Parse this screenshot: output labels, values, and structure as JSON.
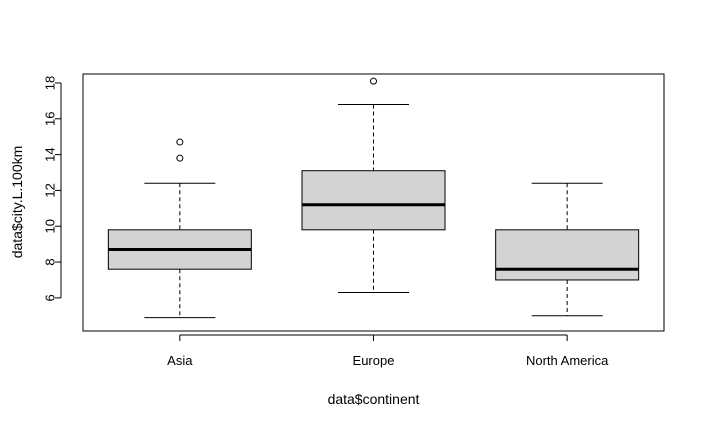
{
  "chart_data": {
    "type": "boxplot",
    "title": "",
    "xlabel": "data$continent",
    "ylabel": "data$city.L.100km",
    "ylim": [
      4.15,
      18.5
    ],
    "yticks": [
      6,
      8,
      10,
      12,
      14,
      16,
      18
    ],
    "grid": false,
    "legend": "none",
    "box_fill": "#d3d3d3",
    "categories": [
      "Asia",
      "Europe",
      "North America"
    ],
    "boxes": [
      {
        "category": "Asia",
        "whisker_low": 4.9,
        "q1": 7.6,
        "median": 8.7,
        "q3": 9.8,
        "whisker_high": 12.4,
        "outliers": [
          13.8,
          14.7
        ]
      },
      {
        "category": "Europe",
        "whisker_low": 6.3,
        "q1": 9.8,
        "median": 11.2,
        "q3": 13.1,
        "whisker_high": 16.8,
        "outliers": [
          18.1
        ]
      },
      {
        "category": "North America",
        "whisker_low": 5.0,
        "q1": 7.0,
        "median": 7.6,
        "q3": 9.8,
        "whisker_high": 12.4,
        "outliers": []
      }
    ]
  }
}
